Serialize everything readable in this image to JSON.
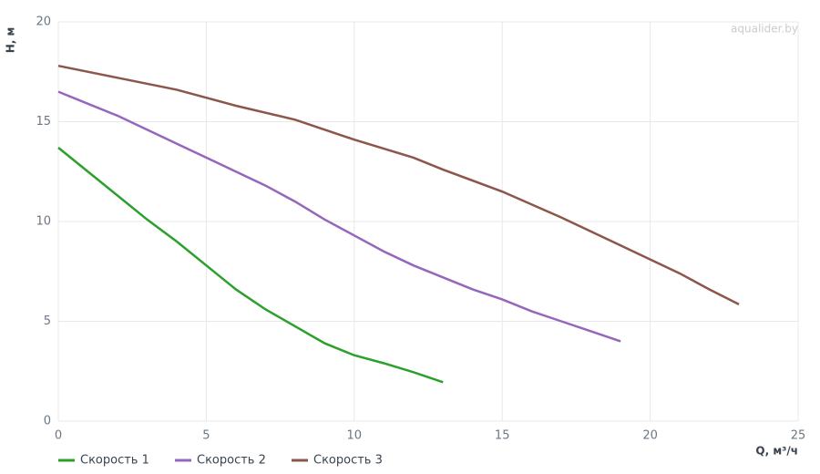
{
  "chart_data": {
    "type": "line",
    "watermark": "aqualider.by",
    "x_label": "Q, м³/ч",
    "y_label": "H, м",
    "xlim": [
      0,
      25
    ],
    "xticks": [
      0,
      5,
      10,
      15,
      20,
      25
    ],
    "ylim": [
      0,
      20
    ],
    "yticks": [
      0,
      5,
      10,
      15,
      20
    ],
    "grid": true,
    "legend": "bottom-left",
    "series": [
      {
        "name": "Скорость 1",
        "color": "#2ca02c",
        "x": [
          0,
          1,
          2,
          3,
          4,
          5,
          6,
          7,
          8,
          9,
          10,
          11,
          12,
          13
        ],
        "values": [
          13.7,
          12.5,
          11.3,
          10.1,
          9.0,
          7.8,
          6.6,
          5.6,
          4.75,
          3.9,
          3.3,
          2.9,
          2.45,
          1.95
        ]
      },
      {
        "name": "Скорость 2",
        "color": "#9467bd",
        "x": [
          0,
          1,
          2,
          3,
          4,
          5,
          6,
          7,
          8,
          9,
          10,
          11,
          12,
          13,
          14,
          15,
          16,
          17,
          18,
          19
        ],
        "values": [
          16.5,
          15.9,
          15.3,
          14.6,
          13.9,
          13.2,
          12.5,
          11.8,
          11.0,
          10.1,
          9.3,
          8.5,
          7.8,
          7.2,
          6.6,
          6.1,
          5.5,
          5.0,
          4.5,
          4.0
        ]
      },
      {
        "name": "Скорость 3",
        "color": "#8c564b",
        "x": [
          0,
          2,
          4,
          5,
          6,
          8,
          10,
          12,
          13,
          15,
          17,
          19,
          20,
          21,
          22,
          23
        ],
        "values": [
          17.8,
          17.2,
          16.6,
          16.2,
          15.8,
          15.1,
          14.1,
          13.2,
          12.6,
          11.5,
          10.2,
          8.8,
          8.1,
          7.4,
          6.6,
          5.85
        ]
      }
    ]
  }
}
